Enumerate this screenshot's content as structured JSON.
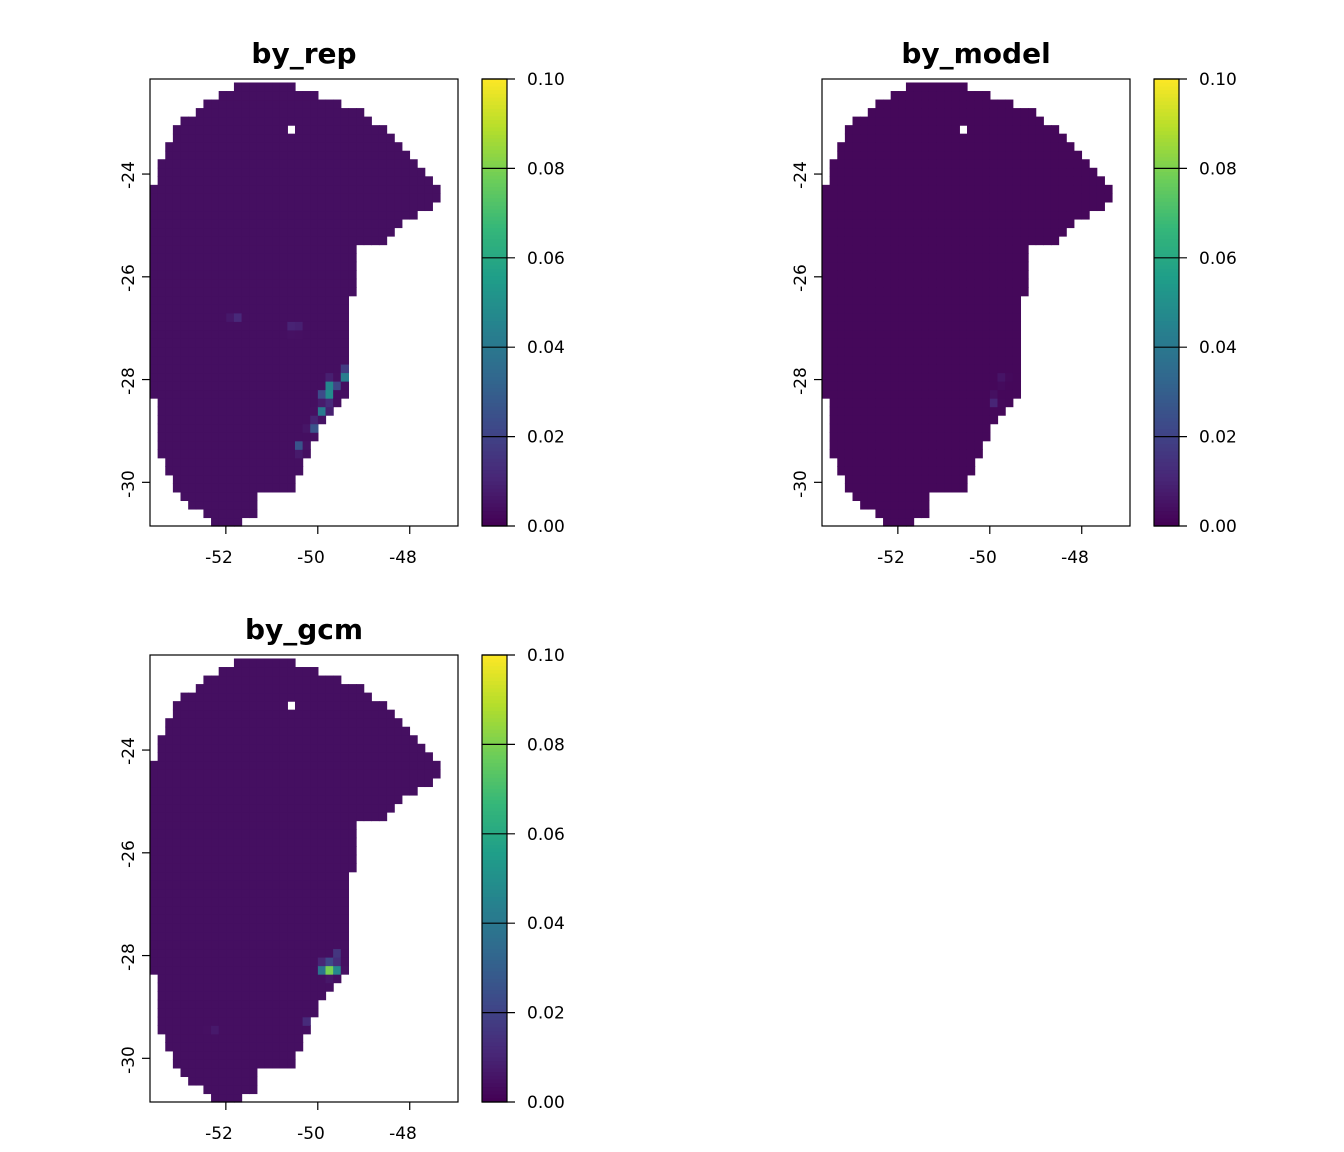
{
  "chart_data": [
    {
      "type": "heatmap",
      "title": "by_rep",
      "xlabel": "",
      "ylabel": "",
      "xlim": [
        -53.65,
        -46.95
      ],
      "ylim": [
        -30.85,
        -22.15
      ],
      "x_ticks": [
        "-52",
        "-50",
        "-48"
      ],
      "y_ticks": [
        "-24",
        "-26",
        "-28",
        "-30"
      ],
      "colorbar": {
        "range": [
          0,
          0.1
        ],
        "ticks": [
          "0.00",
          "0.02",
          "0.04",
          "0.06",
          "0.08",
          "0.10"
        ]
      },
      "grid": false,
      "background_value": 0.004,
      "hotspots": [
        {
          "lon": -49.8,
          "lat": -28.3,
          "value": 0.06
        },
        {
          "lon": -49.7,
          "lat": -28.1,
          "value": 0.055
        },
        {
          "lon": -49.4,
          "lat": -27.9,
          "value": 0.05
        },
        {
          "lon": -49.9,
          "lat": -28.6,
          "value": 0.042
        },
        {
          "lon": -50.1,
          "lat": -28.9,
          "value": 0.03
        },
        {
          "lon": -50.4,
          "lat": -29.3,
          "value": 0.028
        },
        {
          "lon": -50.5,
          "lat": -27.0,
          "value": 0.018
        },
        {
          "lon": -51.8,
          "lat": -26.8,
          "value": 0.015
        },
        {
          "lon": -49.2,
          "lat": -27.6,
          "value": 0.02
        }
      ]
    },
    {
      "type": "heatmap",
      "title": "by_model",
      "xlabel": "",
      "ylabel": "",
      "xlim": [
        -53.65,
        -46.95
      ],
      "ylim": [
        -30.85,
        -22.15
      ],
      "x_ticks": [
        "-52",
        "-50",
        "-48"
      ],
      "y_ticks": [
        "-24",
        "-26",
        "-28",
        "-30"
      ],
      "colorbar": {
        "range": [
          0,
          0.1
        ],
        "ticks": [
          "0.00",
          "0.02",
          "0.04",
          "0.06",
          "0.08",
          "0.10"
        ]
      },
      "grid": false,
      "background_value": 0.002,
      "hotspots": [
        {
          "lon": -49.9,
          "lat": -28.4,
          "value": 0.012
        },
        {
          "lon": -49.7,
          "lat": -28.0,
          "value": 0.008
        }
      ]
    },
    {
      "type": "heatmap",
      "title": "by_gcm",
      "xlabel": "",
      "ylabel": "",
      "xlim": [
        -53.65,
        -46.95
      ],
      "ylim": [
        -30.85,
        -22.15
      ],
      "x_ticks": [
        "-52",
        "-50",
        "-48"
      ],
      "y_ticks": [
        "-24",
        "-26",
        "-28",
        "-30"
      ],
      "colorbar": {
        "range": [
          0,
          0.1
        ],
        "ticks": [
          "0.00",
          "0.02",
          "0.04",
          "0.06",
          "0.08",
          "0.10"
        ]
      },
      "grid": false,
      "background_value": 0.004,
      "hotspots": [
        {
          "lon": -49.8,
          "lat": -28.25,
          "value": 0.1
        },
        {
          "lon": -49.6,
          "lat": -28.25,
          "value": 0.05
        },
        {
          "lon": -49.2,
          "lat": -27.8,
          "value": 0.04
        },
        {
          "lon": -49.6,
          "lat": -28.0,
          "value": 0.02
        },
        {
          "lon": -50.2,
          "lat": -29.3,
          "value": 0.015
        },
        {
          "lon": -52.3,
          "lat": -29.4,
          "value": 0.01
        }
      ]
    }
  ],
  "colors": {
    "viridis": [
      "#440154",
      "#482878",
      "#3e4989",
      "#31688e",
      "#26828e",
      "#1f9e89",
      "#35b779",
      "#6ece58",
      "#b5de2b",
      "#fde725"
    ],
    "axis": "#000000",
    "background": "#ffffff"
  }
}
